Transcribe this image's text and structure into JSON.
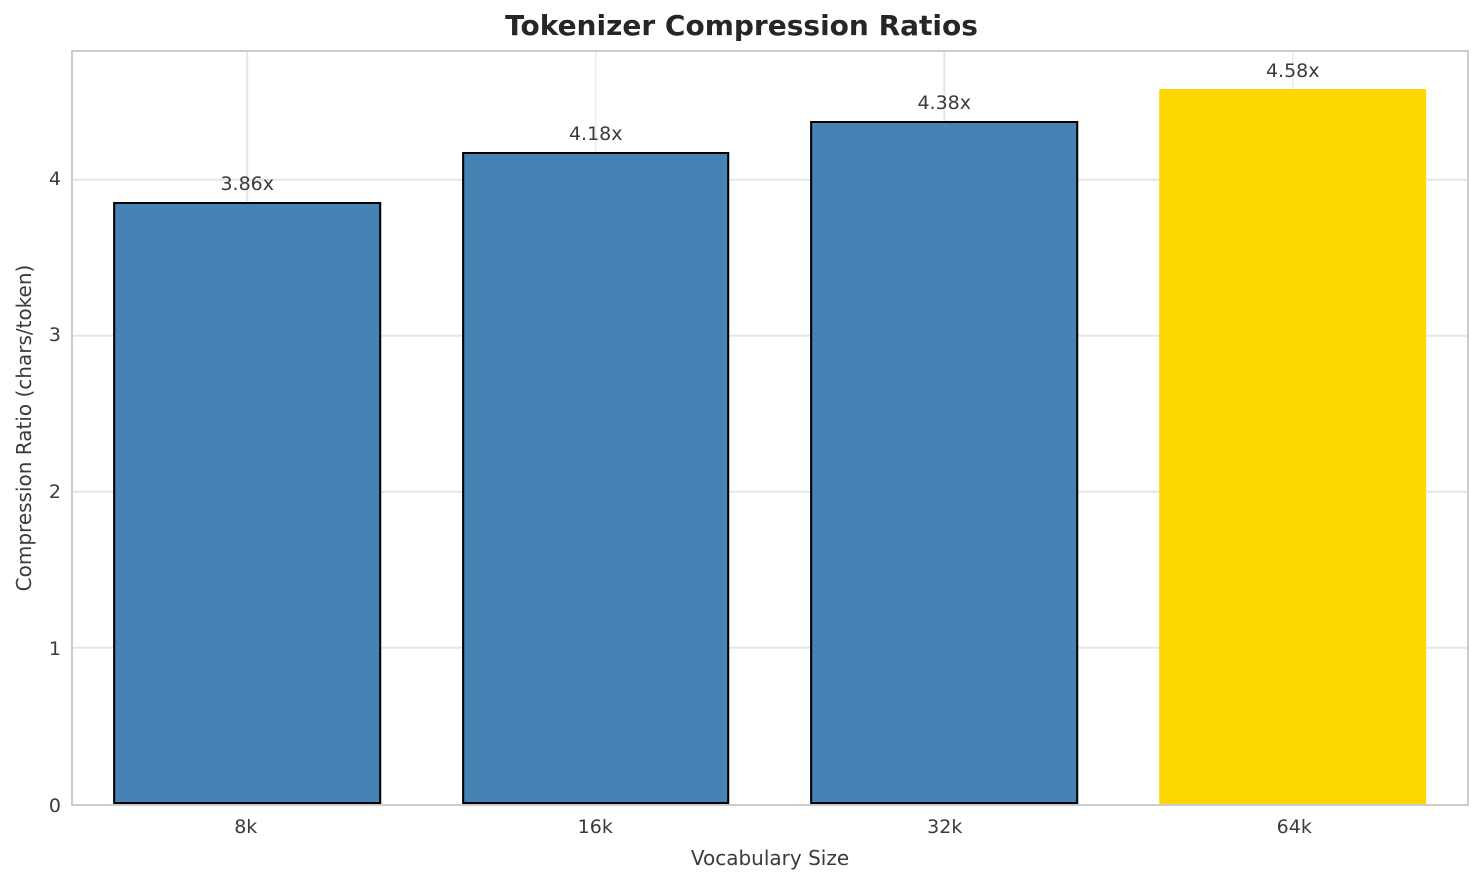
{
  "chart_data": {
    "type": "bar",
    "title": "Tokenizer Compression Ratios",
    "xlabel": "Vocabulary Size",
    "ylabel": "Compression Ratio (chars/token)",
    "categories": [
      "8k",
      "16k",
      "32k",
      "64k"
    ],
    "values": [
      3.86,
      4.18,
      4.38,
      4.58
    ],
    "bar_labels": [
      "3.86x",
      "4.18x",
      "4.38x",
      "4.58x"
    ],
    "ylim": [
      0,
      4.82
    ],
    "yticks": [
      0,
      1,
      2,
      3,
      4
    ],
    "grid": "both",
    "legend": "none",
    "colors": {
      "bar_default": "#4682B4",
      "bar_highlight": "#FFD700",
      "bar_edge": "#000000",
      "grid": "#e5e5e5",
      "spine": "#cccccc",
      "title_text": "#262626",
      "text": "#3b3b3b"
    },
    "bars": [
      {
        "category": "8k",
        "value": 3.86,
        "label": "3.86x",
        "color": "#4682B4",
        "edge": "#000000"
      },
      {
        "category": "16k",
        "value": 4.18,
        "label": "4.18x",
        "color": "#4682B4",
        "edge": "#000000"
      },
      {
        "category": "32k",
        "value": 4.38,
        "label": "4.38x",
        "color": "#4682B4",
        "edge": "#000000"
      },
      {
        "category": "64k",
        "value": 4.58,
        "label": "4.58x",
        "color": "#FFD700",
        "edge": "none"
      }
    ]
  }
}
